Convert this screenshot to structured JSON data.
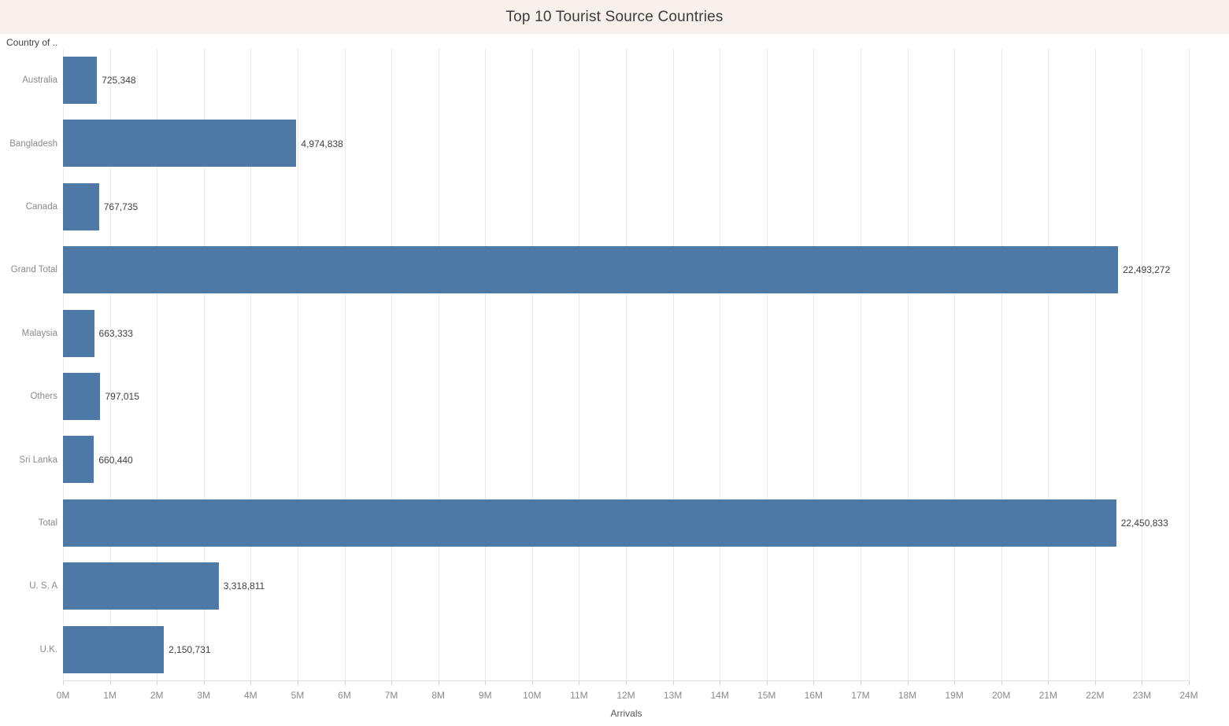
{
  "title_bar": {
    "title": "Top 10 Tourist Source Countries"
  },
  "chart_data": {
    "type": "bar",
    "orientation": "horizontal",
    "title": "Top 10 Tourist Source Countries",
    "xlabel": "Arrivals",
    "ylabel": "Country of ..",
    "categories": [
      "Australia",
      "Bangladesh",
      "Canada",
      "Grand Total",
      "Malaysia",
      "Others",
      "Sri Lanka",
      "Total",
      "U. S. A",
      "U.K."
    ],
    "values": [
      725348,
      4974838,
      767735,
      22493272,
      663333,
      797015,
      660440,
      22450833,
      3318811,
      2150731
    ],
    "value_labels": [
      "725,348",
      "4,974,838",
      "767,735",
      "22,493,272",
      "663,333",
      "797,015",
      "660,440",
      "22,450,833",
      "3,318,811",
      "2,150,731"
    ],
    "xlim": [
      0,
      24000000
    ],
    "x_ticks": [
      "0M",
      "1M",
      "2M",
      "3M",
      "4M",
      "5M",
      "6M",
      "7M",
      "8M",
      "9M",
      "10M",
      "11M",
      "12M",
      "13M",
      "14M",
      "15M",
      "16M",
      "17M",
      "18M",
      "19M",
      "20M",
      "21M",
      "22M",
      "23M",
      "24M"
    ],
    "grid": true,
    "legend": "none",
    "bar_color": "#4e79a7"
  },
  "colors": {
    "title_strip_background": "#f8f1eb",
    "title_text": "#3c3c3c",
    "bar": "#4e79a7",
    "category_label": "#8a8a8a",
    "value_label": "#414141",
    "tick_label": "#8a8a8a",
    "axis_title": "#555555",
    "gridline": "#eaeaea",
    "background": "#ffffff"
  }
}
